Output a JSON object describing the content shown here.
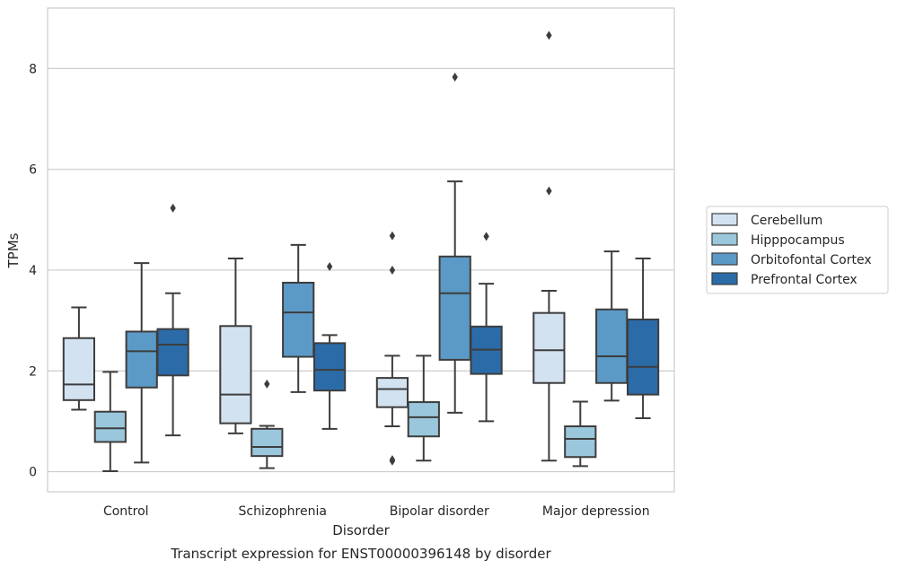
{
  "chart_data": {
    "type": "box",
    "title": "Transcript expression for ENST00000396148 by disorder",
    "xlabel": "Disorder",
    "ylabel": "TPMs",
    "ylim": [
      -0.4,
      9.2
    ],
    "yticks": [
      0,
      2,
      4,
      6,
      8
    ],
    "grid": true,
    "legend_position": "right",
    "categories": [
      "Control",
      "Schizophrenia",
      "Bipolar disorder",
      "Major depression"
    ],
    "series": [
      {
        "name": "Cerebellum",
        "color": "#d3e2f1",
        "boxes": [
          {
            "whislo": 1.23,
            "q1": 1.42,
            "med": 1.73,
            "q3": 2.65,
            "whishi": 3.26,
            "fliers": []
          },
          {
            "whislo": 0.76,
            "q1": 0.96,
            "med": 1.53,
            "q3": 2.89,
            "whishi": 4.23,
            "fliers": []
          },
          {
            "whislo": 0.9,
            "q1": 1.28,
            "med": 1.64,
            "q3": 1.86,
            "whishi": 2.3,
            "fliers": [
              0.21,
              0.24,
              4.0,
              4.68
            ]
          },
          {
            "whislo": 0.22,
            "q1": 1.76,
            "med": 2.41,
            "q3": 3.15,
            "whishi": 3.59,
            "fliers": [
              5.57,
              8.66
            ]
          }
        ]
      },
      {
        "name": "Hipppocampus",
        "color": "#9ac7dc",
        "boxes": [
          {
            "whislo": 0.01,
            "q1": 0.59,
            "med": 0.86,
            "q3": 1.19,
            "whishi": 1.98,
            "fliers": []
          },
          {
            "whislo": 0.07,
            "q1": 0.31,
            "med": 0.49,
            "q3": 0.85,
            "whishi": 0.91,
            "fliers": [
              1.74
            ]
          },
          {
            "whislo": 0.22,
            "q1": 0.7,
            "med": 1.08,
            "q3": 1.38,
            "whishi": 2.3,
            "fliers": []
          },
          {
            "whislo": 0.11,
            "q1": 0.29,
            "med": 0.65,
            "q3": 0.9,
            "whishi": 1.39,
            "fliers": []
          }
        ]
      },
      {
        "name": "Orbitofontal Cortex",
        "color": "#5b9ac6",
        "boxes": [
          {
            "whislo": 0.18,
            "q1": 1.67,
            "med": 2.39,
            "q3": 2.78,
            "whishi": 4.14,
            "fliers": []
          },
          {
            "whislo": 1.58,
            "q1": 2.28,
            "med": 3.16,
            "q3": 3.75,
            "whishi": 4.5,
            "fliers": []
          },
          {
            "whislo": 1.17,
            "q1": 2.22,
            "med": 3.54,
            "q3": 4.27,
            "whishi": 5.76,
            "fliers": [
              7.83
            ]
          },
          {
            "whislo": 1.41,
            "q1": 1.76,
            "med": 2.29,
            "q3": 3.22,
            "whishi": 4.37,
            "fliers": []
          }
        ]
      },
      {
        "name": "Prefrontal Cortex",
        "color": "#2b6ca8",
        "boxes": [
          {
            "whislo": 0.72,
            "q1": 1.91,
            "med": 2.52,
            "q3": 2.83,
            "whishi": 3.54,
            "fliers": [
              5.23
            ]
          },
          {
            "whislo": 0.85,
            "q1": 1.61,
            "med": 2.02,
            "q3": 2.55,
            "whishi": 2.71,
            "fliers": [
              4.07
            ]
          },
          {
            "whislo": 1.0,
            "q1": 1.94,
            "med": 2.42,
            "q3": 2.88,
            "whishi": 3.73,
            "fliers": [
              4.67
            ]
          },
          {
            "whislo": 1.06,
            "q1": 1.53,
            "med": 2.08,
            "q3": 3.02,
            "whishi": 4.23,
            "fliers": []
          }
        ]
      }
    ]
  }
}
